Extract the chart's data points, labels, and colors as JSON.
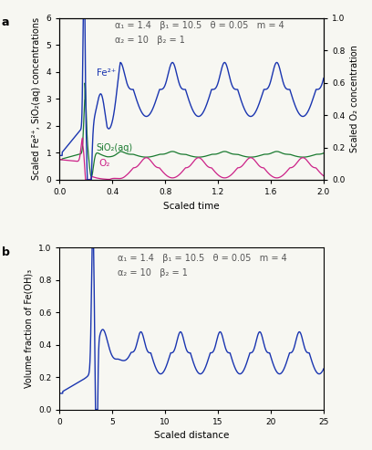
{
  "panel_a": {
    "title_annotation_line1": "α₁ = 1.4   β₁ = 10.5   θ = 0.05   m = 4",
    "title_annotation_line2": "α₂ = 10   β₂ = 1",
    "xlabel": "Scaled time",
    "ylabel_left": "Scaled Fe²⁺, SiO₂(aq) concentrations",
    "ylabel_right": "Scaled O₂ concentration",
    "xlim": [
      0,
      2.0
    ],
    "ylim_left": [
      0,
      6
    ],
    "ylim_right": [
      0,
      1.0
    ],
    "xticks": [
      0,
      0.4,
      0.8,
      1.2,
      1.6,
      2.0
    ],
    "yticks_left": [
      0,
      1,
      2,
      3,
      4,
      5,
      6
    ],
    "yticks_right": [
      0,
      0.2,
      0.4,
      0.6,
      0.8,
      1.0
    ],
    "fe_color": "#1a35b0",
    "sio2_color": "#1a7a30",
    "o2_color": "#cc2288",
    "fe_label": "Fe²⁺",
    "sio2_label": "SiO₂(aq)",
    "o2_label": "O₂",
    "fe_peak": 4.35,
    "fe_trough": 2.35,
    "fe_period": 0.395,
    "fe_first_peak": 0.46,
    "sio2_peak": 1.05,
    "sio2_trough": 0.84,
    "o2_peak": 0.82,
    "o2_trough": 0.07,
    "o2_period": 0.395
  },
  "panel_b": {
    "title_annotation_line1": "α₁ = 1.4   β₁ = 10.5   θ = 0.05   m = 4",
    "title_annotation_line2": "α₂ = 10   β₂ = 1",
    "xlabel": "Scaled distance",
    "ylabel": "Volume fraction of Fe(OH)₃",
    "xlim": [
      0,
      25
    ],
    "ylim": [
      0,
      1.0
    ],
    "xticks": [
      0,
      5,
      10,
      15,
      20,
      25
    ],
    "yticks": [
      0,
      0.2,
      0.4,
      0.6,
      0.8,
      1.0
    ],
    "line_color": "#1a35b0",
    "spike_x": 3.15,
    "spike_height": 0.88,
    "osc_period": 3.75,
    "osc_first_peak": 7.7,
    "osc_peak": 0.48,
    "osc_trough": 0.22
  },
  "background_color": "#f7f7f2",
  "annotation_fontsize": 7.0,
  "label_fontsize": 7.5,
  "tick_fontsize": 6.5
}
